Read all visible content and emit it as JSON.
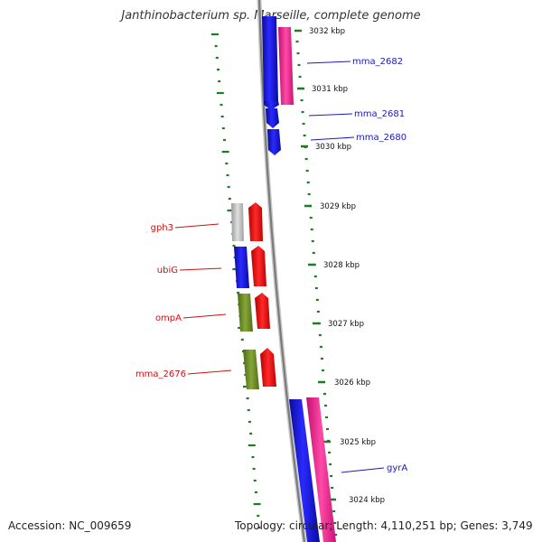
{
  "map": {
    "title": "Janthinobacterium sp. Marseille, complete genome",
    "accession": "Accession: NC_009659",
    "topology": "Topology: circular; Length: 4,110,251 bp; Genes: 3,749",
    "ticks": [
      "3032 kbp",
      "3031 kbp",
      "3030 kbp",
      "3029 kbp",
      "3028 kbp",
      "3027 kbp",
      "3026 kbp",
      "3025 kbp",
      "3024 kbp"
    ],
    "right_labels": [
      "mma_2682",
      "mma_2681",
      "mma_2680",
      "gyrA"
    ],
    "left_labels": [
      "gph3",
      "ubiG",
      "ompA",
      "mma_2676"
    ],
    "colors": {
      "backbone": "#8c8c8c",
      "tick": "#1e7d1e",
      "blue_gene": "#1414e6",
      "pink_gene": "#ee2a8e",
      "red_gene": "#ee1111",
      "grey_gene": "#c4c4c4",
      "olive_gene": "#6b8a23",
      "right_label": "#1a1ab3",
      "left_label": "#cc1111"
    }
  }
}
